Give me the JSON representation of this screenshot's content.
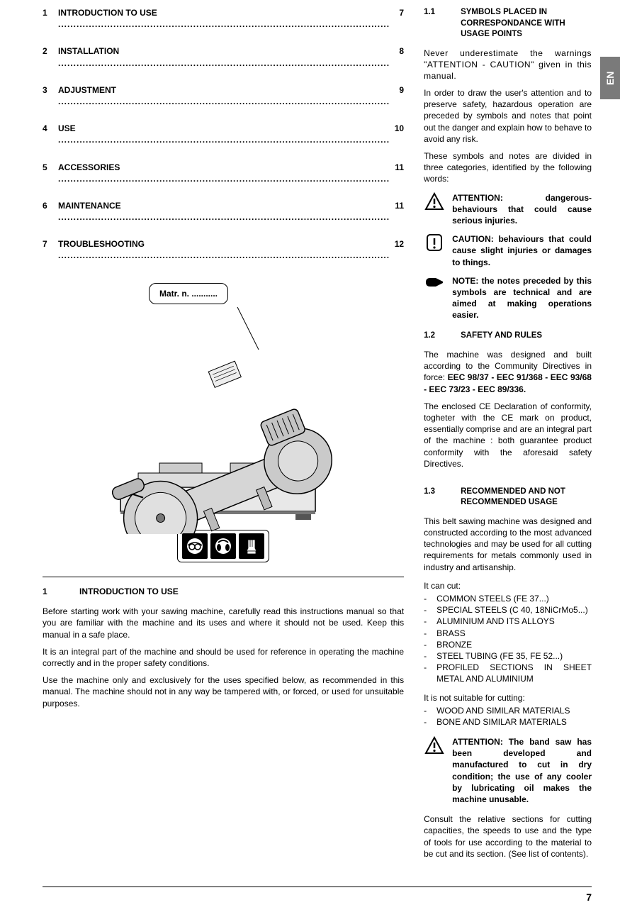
{
  "lang_tab": "EN",
  "page_number": "7",
  "toc": [
    {
      "num": "1",
      "title": "INTRODUCTION TO USE",
      "page": "7"
    },
    {
      "num": "2",
      "title": "INSTALLATION",
      "page": "8"
    },
    {
      "num": "3",
      "title": "ADJUSTMENT",
      "page": "9"
    },
    {
      "num": "4",
      "title": "USE",
      "page": "10"
    },
    {
      "num": "5",
      "title": "ACCESSORIES",
      "page": "11"
    },
    {
      "num": "6",
      "title": "MAINTENANCE",
      "page": "11"
    },
    {
      "num": "7",
      "title": "TROUBLESHOOTING",
      "page": "12"
    }
  ],
  "matr_label": "Matr. n. ...........",
  "section1": {
    "num": "1",
    "title": "INTRODUCTION TO USE",
    "p1": "Before starting work with your sawing machine, carefully read this instructions manual so that you are familiar with the machine and its uses and where it should not be used. Keep this manual in a safe place.",
    "p2": "It is an integral part of the machine and should be used for reference in operating the machine correctly and in the proper safety conditions.",
    "p3": "Use the machine only and exclusively for the uses specified below, as recommended in this manual. The machine should not in any way be tampered with, or forced, or used for unsuitable purposes."
  },
  "section1_1": {
    "num": "1.1",
    "title": "SYMBOLS PLACED IN CORRESPONDANCE WITH USAGE POINTS",
    "p1": "Never underestimate the warnings \"ATTENTION - CAUTION\" given in this manual.",
    "p2": "In order to draw the user's attention and to preserve safety, hazardous operation are preceded by symbols and notes that point out the danger and explain how to behave to avoid any risk.",
    "p3": "These symbols and notes are divided in three categories, identified by the following words:",
    "attention": "ATTENTION: dangerous-behaviours that could cause serious injuries.",
    "caution": "CAUTION: behaviours that could cause slight injuries or damages to things.",
    "note": "NOTE: the notes preceded by this symbols are technical and are aimed at making operations easier."
  },
  "section1_2": {
    "num": "1.2",
    "title": "SAFETY AND RULES",
    "p1a": "The machine was designed and built according to the Community Directives in force: ",
    "p1b": "EEC 98/37 - EEC 91/368 - EEC 93/68 - EEC 73/23 - EEC 89/336.",
    "p2": "The enclosed CE Declaration of conformity, togheter with the CE mark on product, essentially comprise and are an integral part of the machine : both guarantee product conformity with the aforesaid safety Directives."
  },
  "section1_3": {
    "num": "1.3",
    "title": "RECOMMENDED AND NOT RECOMMENDED USAGE",
    "p1": "This belt sawing machine was designed and constructed according to the most advanced technologies and may be used for all cutting requirements for metals commonly used in industry and artisanship.",
    "can_cut_label": "It can cut:",
    "can_cut": [
      "COMMON STEELS (FE 37...)",
      "SPECIAL STEELS (C 40, 18NiCrMo5...)",
      "ALUMINIUM AND ITS ALLOYS",
      "BRASS",
      "BRONZE",
      "STEEL TUBING (FE 35, FE 52...)",
      "PROFILED SECTIONS IN SHEET METAL AND ALUMINIUM"
    ],
    "not_suitable_label": "It is not suitable for cutting:",
    "not_suitable": [
      "WOOD AND SIMILAR MATERIALS",
      "BONE AND SIMILAR MATERIALS"
    ],
    "attention": "ATTENTION:  The band saw has been developed and manufactured to cut in dry condition; the use of any cooler by lubricating oil makes the machine unusable.",
    "p_last": "Consult the relative sections for cutting capacities, the speeds to use and the type of tools for use according to the material to be cut and its section. (See list of contents)."
  }
}
